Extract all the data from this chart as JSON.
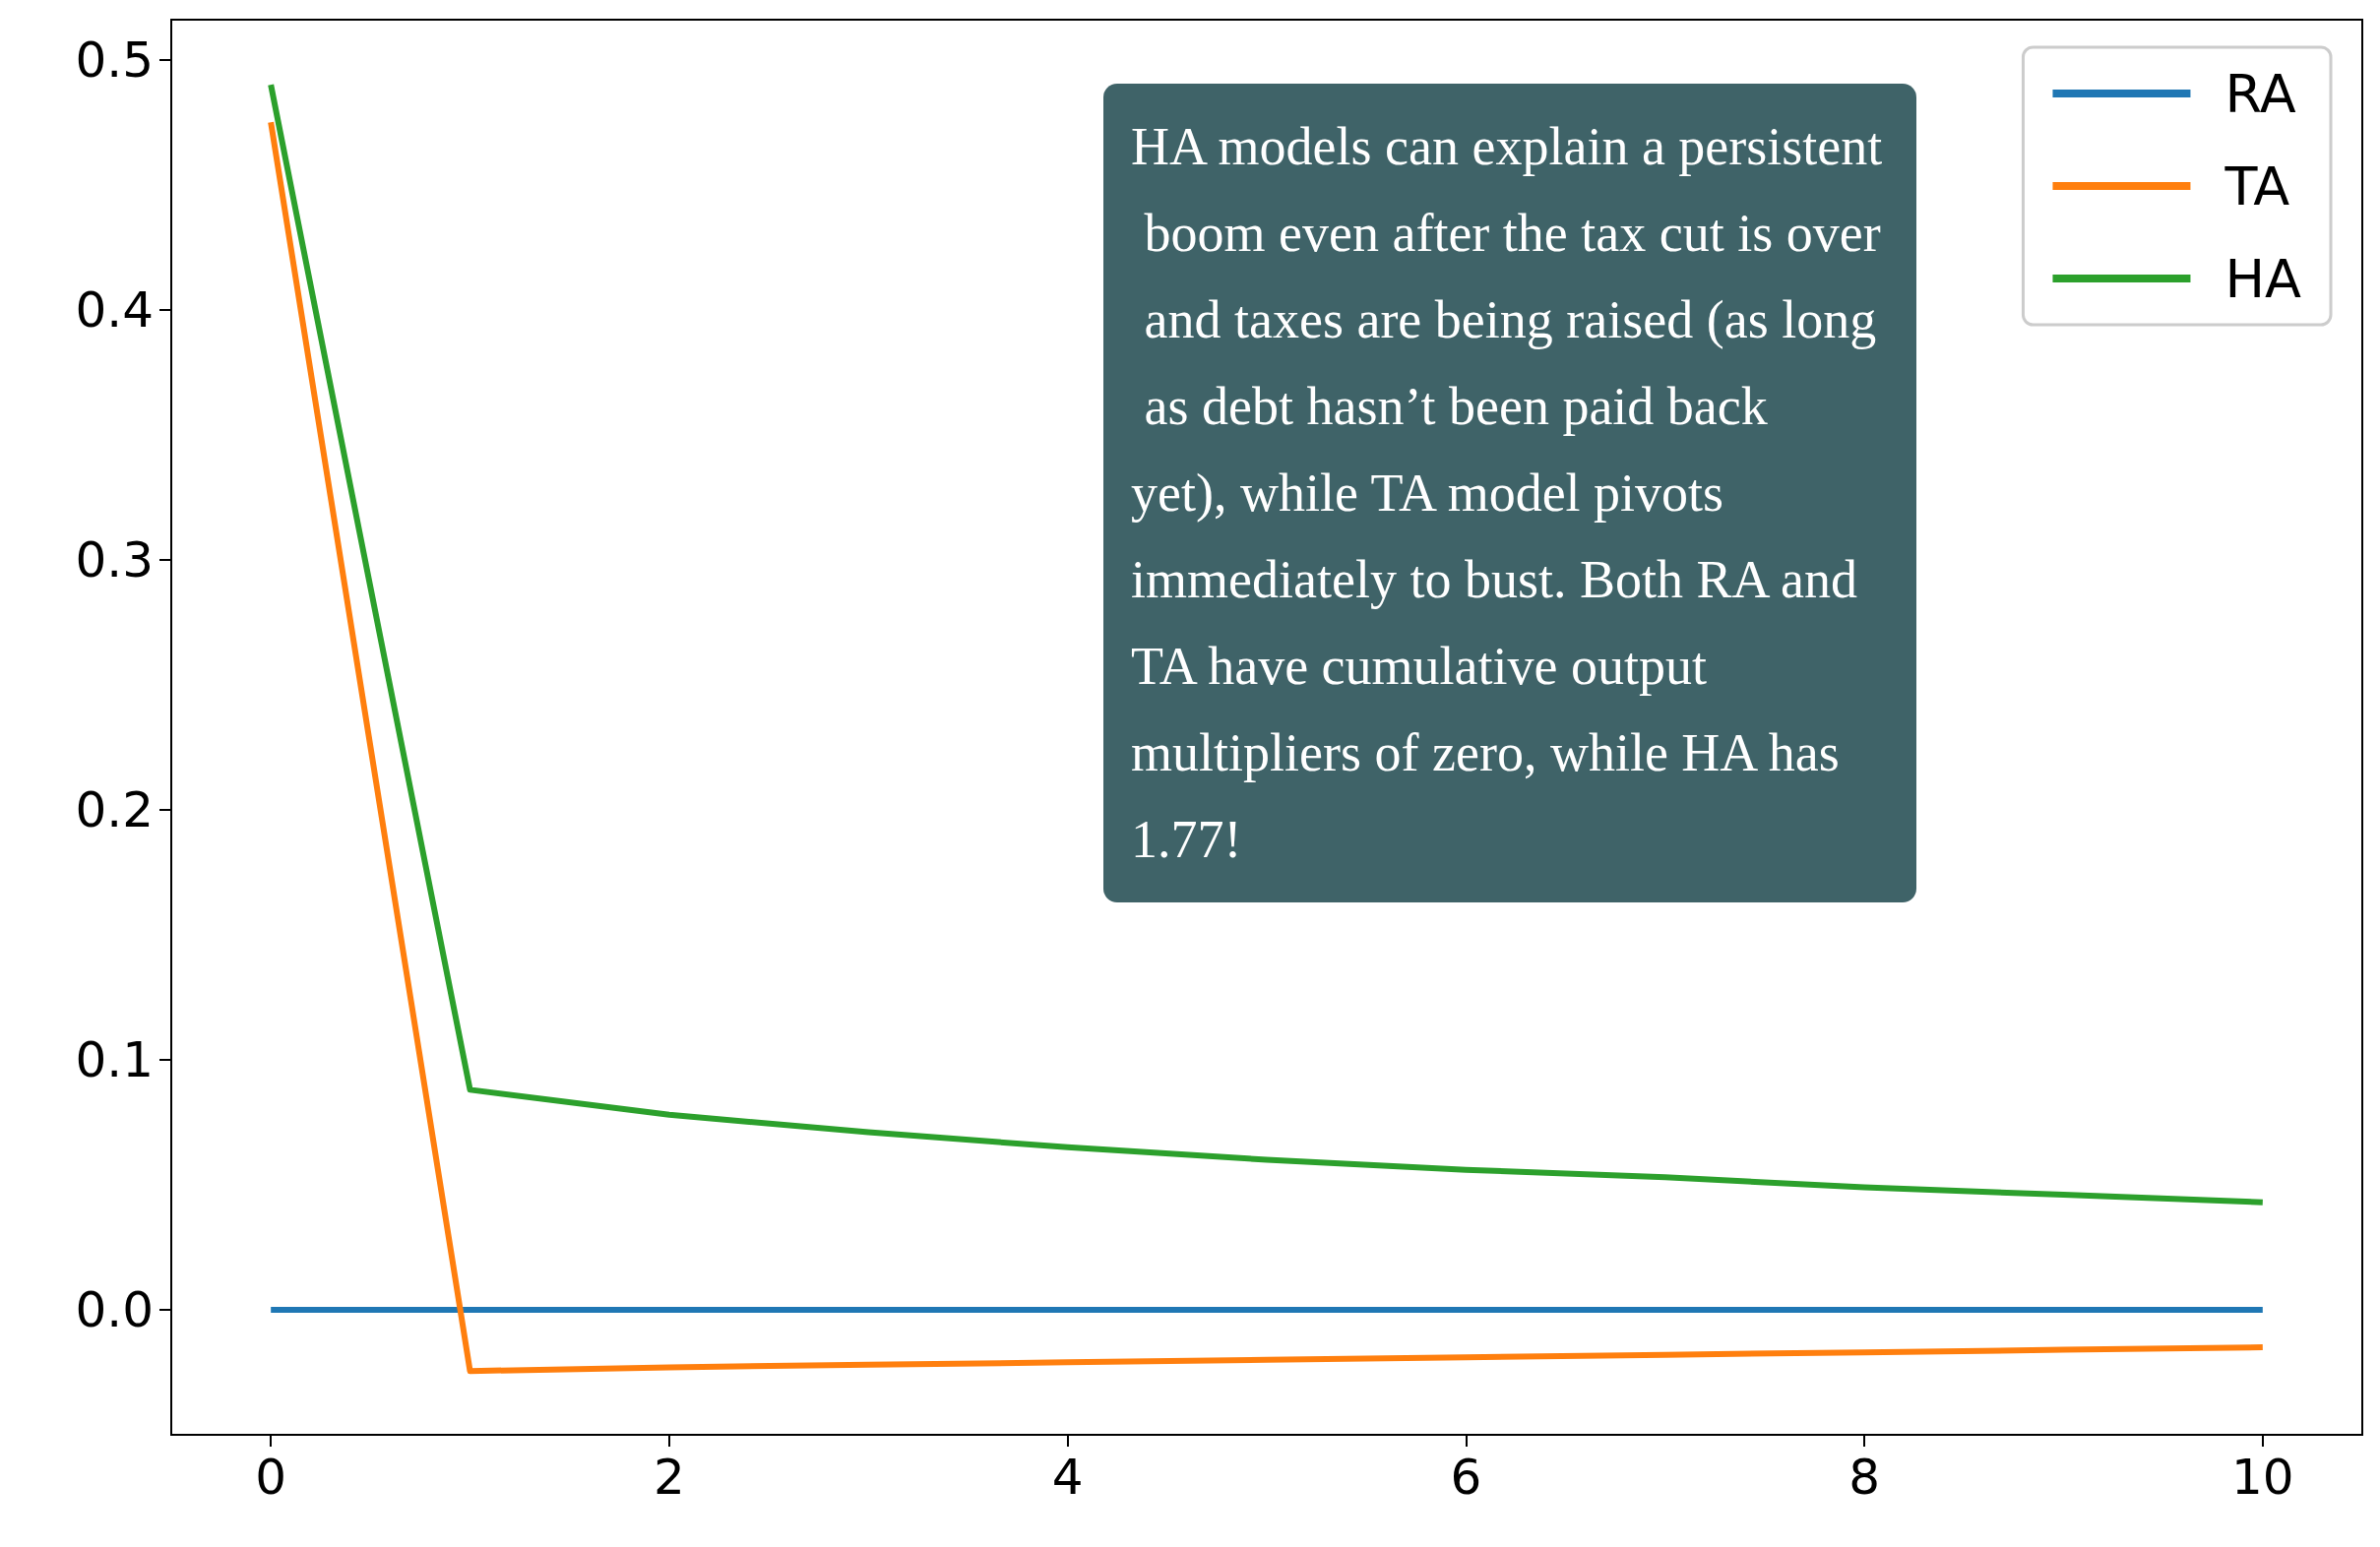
{
  "chart_data": {
    "type": "line",
    "x": [
      0,
      1,
      2,
      3,
      4,
      5,
      6,
      7,
      8,
      9,
      10
    ],
    "series": [
      {
        "name": "RA",
        "color": "#1f77b4",
        "values": [
          0,
          0,
          0,
          0,
          0,
          0,
          0,
          0,
          0,
          0,
          0
        ]
      },
      {
        "name": "TA",
        "color": "#ff7f0e",
        "values": [
          0.475,
          -0.0245,
          -0.023,
          -0.022,
          -0.021,
          -0.02,
          -0.019,
          -0.018,
          -0.017,
          -0.016,
          -0.015
        ]
      },
      {
        "name": "HA",
        "color": "#2ca02c",
        "values": [
          0.49,
          0.088,
          0.078,
          0.071,
          0.065,
          0.06,
          0.056,
          0.053,
          0.049,
          0.046,
          0.043
        ]
      }
    ],
    "xlim": [
      -0.5,
      10.5
    ],
    "xticks": [
      0,
      2,
      4,
      6,
      8,
      10
    ],
    "ylim": [
      -0.05,
      0.516
    ],
    "yticks": [
      {
        "value": 0,
        "label": "0.0"
      },
      0.1,
      0.2,
      0.3,
      0.4,
      0.5
    ],
    "legend": "top right",
    "grid": false,
    "annotations": [
      "HA models can explain a persistent boom even after the tax cut is over and taxes are being raised (as long as debt hasn’t been paid back yet), while TA model pivots immediately to bust. Both RA and TA have cumulative output multipliers of zero, while HA has 1.77!"
    ]
  }
}
